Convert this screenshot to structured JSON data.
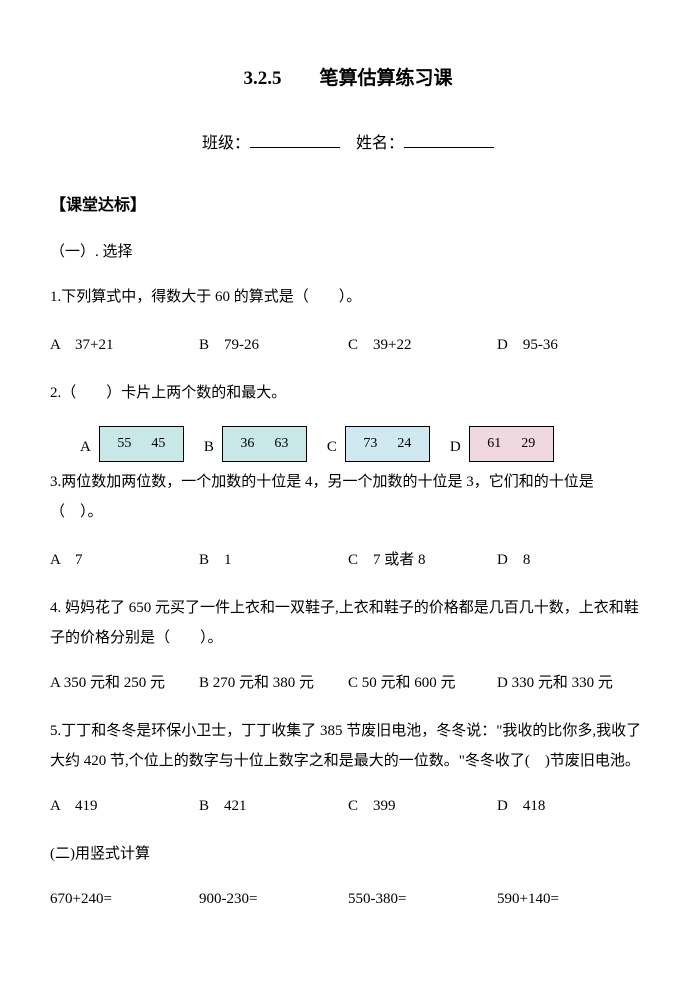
{
  "title": "3.2.5　　笔算估算练习课",
  "header": {
    "class_label": "班级：",
    "name_label": "姓名："
  },
  "section1_header": "【课堂达标】",
  "sub1_title": "（一）. 选择",
  "q1": {
    "text": "1.下列算式中，得数大于 60 的算式是（　　）。",
    "a": "A　37+21",
    "b": "B　79-26",
    "c": "C　39+22",
    "d": "D　95-36"
  },
  "q2": {
    "text": "2.（　　）卡片上两个数的和最大。",
    "cards": [
      {
        "label": "A",
        "v1": "55",
        "v2": "45",
        "bg": "#c8e8e8"
      },
      {
        "label": "B",
        "v1": "36",
        "v2": "63",
        "bg": "#c8e8e8"
      },
      {
        "label": "C",
        "v1": "73",
        "v2": "24",
        "bg": "#d0e8f0"
      },
      {
        "label": "D",
        "v1": "61",
        "v2": "29",
        "bg": "#f0d8e0"
      }
    ]
  },
  "q3": {
    "text": "3.两位数加两位数，一个加数的十位是 4，另一个加数的十位是 3，它们和的十位是（　）。",
    "a": "A　7",
    "b": "B　1",
    "c": "C　7 或者 8",
    "d": "D　8"
  },
  "q4": {
    "text": "4. 妈妈花了 650 元买了一件上衣和一双鞋子,上衣和鞋子的价格都是几百几十数，上衣和鞋子的价格分别是（　　）。",
    "a": "A 350 元和 250 元",
    "b": "B 270 元和 380 元",
    "c": "C 50 元和 600 元",
    "d": "D 330 元和 330 元"
  },
  "q5": {
    "text": "5.丁丁和冬冬是环保小卫士，丁丁收集了 385 节废旧电池，冬冬说：\"我收的比你多,我收了大约 420 节,个位上的数字与十位上数字之和是最大的一位数。\"冬冬收了(　)节废旧电池。",
    "a": "A　419",
    "b": "B　421",
    "c": "C　399",
    "d": "D　418"
  },
  "sub2_title": "(二)用竖式计算",
  "calc": {
    "a": "670+240=",
    "b": "900-230=",
    "c": "550-380=",
    "d": "590+140="
  }
}
